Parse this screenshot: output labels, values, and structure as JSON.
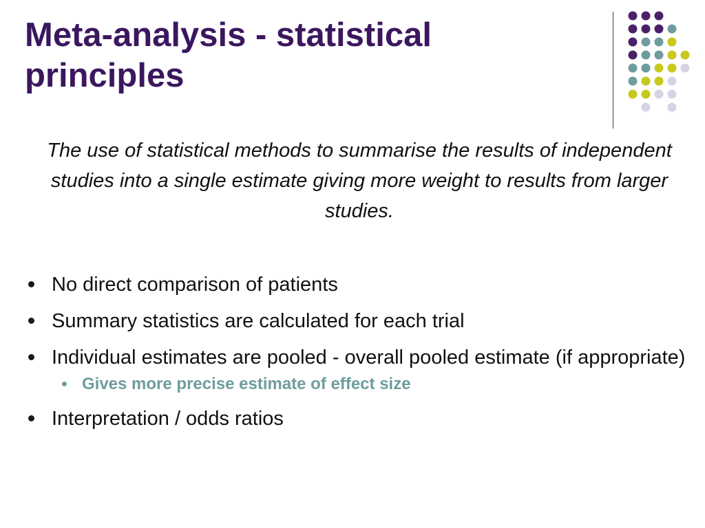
{
  "slide": {
    "title": "Meta-analysis - statistical principles",
    "definition": "The use of statistical methods to summarise the results of independent studies into a single estimate giving more weight to results from larger studies.",
    "bullets": [
      "No direct comparison of patients",
      "Summary statistics are calculated for each trial",
      "Individual estimates are pooled - overall pooled estimate (if appropriate)",
      "Interpretation / odds ratios"
    ],
    "sub_bullet": "Gives more precise estimate of effect size"
  },
  "theme": {
    "title_color": "#3b175f",
    "sub_bullet_color": "#6f9c9c",
    "dot_colors": {
      "purple": "#4a2169",
      "teal": "#6f9c9c",
      "yellow": "#c8c81e",
      "lavender": "#d4d4e4"
    }
  }
}
